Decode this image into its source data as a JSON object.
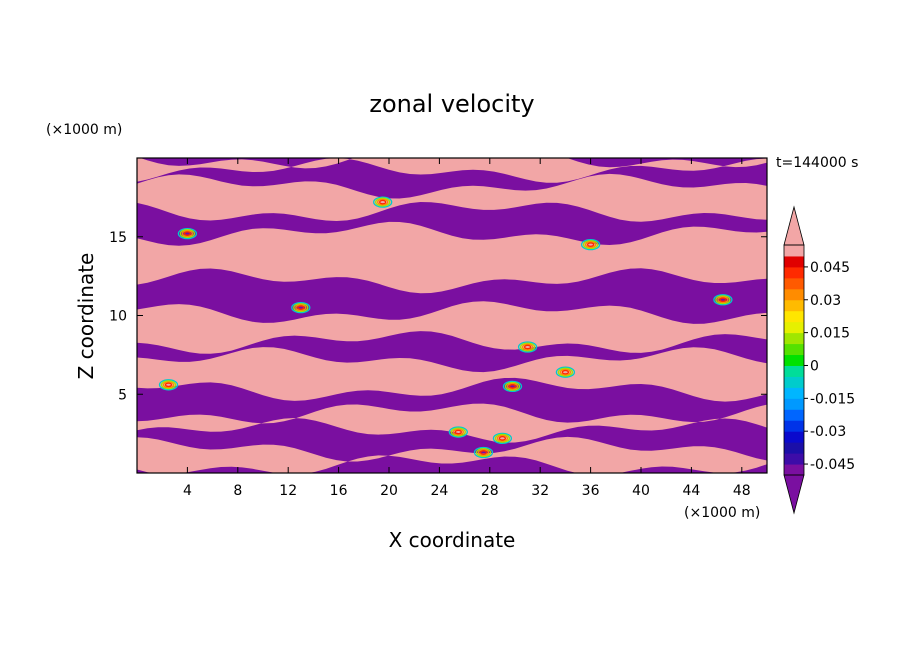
{
  "chart_data": {
    "type": "heatmap",
    "title": "zonal velocity",
    "xlabel": "X coordinate",
    "ylabel": "Z coordinate",
    "x_unit": "(×1000 m)",
    "y_unit": "(×1000 m)",
    "time_label": "t=144000 s",
    "xlim": [
      0,
      50
    ],
    "ylim": [
      0,
      20
    ],
    "x_ticks": [
      4,
      8,
      12,
      16,
      20,
      24,
      28,
      32,
      36,
      40,
      44,
      48
    ],
    "y_ticks": [
      5,
      10,
      15
    ],
    "colorbar": {
      "levels": [
        -0.05,
        -0.045,
        -0.04,
        -0.035,
        -0.03,
        -0.025,
        -0.02,
        -0.015,
        -0.01,
        -0.005,
        0,
        0.005,
        0.01,
        0.015,
        0.02,
        0.025,
        0.03,
        0.035,
        0.04,
        0.045,
        0.05
      ],
      "labels": [
        "-0.045",
        "-0.03",
        "-0.015",
        "0",
        "0.015",
        "0.03",
        "0.045"
      ],
      "colors": [
        "#7a0fa0",
        "#3d0ca8",
        "#1b0fa8",
        "#0a0acd",
        "#0033e8",
        "#0066ff",
        "#0099ff",
        "#00b6ff",
        "#00cccc",
        "#00dd99",
        "#00e100",
        "#55e100",
        "#a0e600",
        "#e6f000",
        "#ffe600",
        "#ffbb00",
        "#ff8c00",
        "#ff5a00",
        "#ff2a00",
        "#e00000",
        "#f2a6a6"
      ],
      "extend": "both"
    },
    "field_summary": "banded field alternating between values below -0.05 (purple) and above 0.05 (pink), with thin transition fringes",
    "bands": [
      {
        "z_range": [
          0.0,
          0.5
        ],
        "value": "<-0.05"
      },
      {
        "z_range": [
          0.5,
          1.5
        ],
        "value": ">0.05"
      },
      {
        "z_range": [
          1.5,
          2.7
        ],
        "value": "<-0.05"
      },
      {
        "z_range": [
          2.7,
          3.8
        ],
        "value": ">0.05"
      },
      {
        "z_range": [
          3.8,
          5.3
        ],
        "value": "<-0.05"
      },
      {
        "z_range": [
          5.3,
          7.2
        ],
        "value": ">0.05"
      },
      {
        "z_range": [
          7.2,
          8.3
        ],
        "value": "<-0.05"
      },
      {
        "z_range": [
          8.3,
          10.2
        ],
        "value": ">0.05"
      },
      {
        "z_range": [
          10.2,
          12.2
        ],
        "value": "<-0.05"
      },
      {
        "z_range": [
          12.2,
          15.2
        ],
        "value": ">0.05"
      },
      {
        "z_range": [
          15.2,
          16.6
        ],
        "value": "<-0.05"
      },
      {
        "z_range": [
          16.6,
          18.2
        ],
        "value": ">0.05"
      },
      {
        "z_range": [
          18.2,
          19.2
        ],
        "value": "<-0.05"
      },
      {
        "z_range": [
          19.2,
          20.0
        ],
        "value": ">0.05"
      }
    ]
  }
}
